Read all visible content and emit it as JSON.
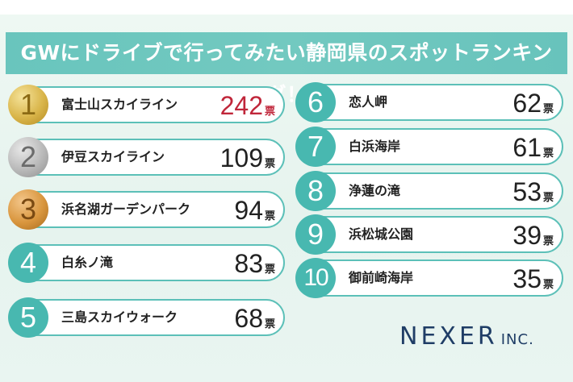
{
  "title": "GWにドライブで行ってみたい静岡県のスポットランキング！",
  "vote_unit": "票",
  "rankings": [
    {
      "rank": "1",
      "name": "富士山スカイライン",
      "votes": "242"
    },
    {
      "rank": "2",
      "name": "伊豆スカイライン",
      "votes": "109"
    },
    {
      "rank": "3",
      "name": "浜名湖ガーデンパーク",
      "votes": "94"
    },
    {
      "rank": "4",
      "name": "白糸ノ滝",
      "votes": "83"
    },
    {
      "rank": "5",
      "name": "三島スカイウォーク",
      "votes": "68"
    },
    {
      "rank": "6",
      "name": "恋人岬",
      "votes": "62"
    },
    {
      "rank": "7",
      "name": "白浜海岸",
      "votes": "61"
    },
    {
      "rank": "8",
      "name": "浄蓮の滝",
      "votes": "53"
    },
    {
      "rank": "9",
      "name": "浜松城公園",
      "votes": "39"
    },
    {
      "rank": "10",
      "name": "御前崎海岸",
      "votes": "35"
    }
  ],
  "logo": {
    "main": "NEXER",
    "suffix": "INC."
  },
  "colors": {
    "accent": "#5cc0b8",
    "highlight_votes": "#c0263a",
    "logo": "#1f3d66"
  }
}
